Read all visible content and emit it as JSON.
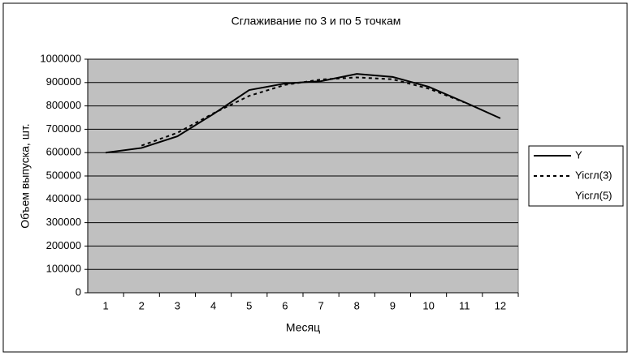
{
  "chart_data": {
    "type": "line",
    "title": "Сглаживание по 3 и по 5 точкам",
    "x_label": "Месяц",
    "y_label": "Объем выпуска, шт.",
    "categories": [
      "1",
      "2",
      "3",
      "4",
      "5",
      "6",
      "7",
      "8",
      "9",
      "10",
      "11",
      "12"
    ],
    "series": [
      {
        "name": "Y",
        "color": "#000000",
        "dash": "none",
        "values": [
          600000,
          620000,
          670000,
          765000,
          868000,
          896000,
          906000,
          937000,
          924000,
          882000,
          816000,
          747000
        ]
      },
      {
        "name": "Yicгл(3)",
        "color": "#000000",
        "dash": "4,4",
        "values": [
          null,
          630000,
          685000,
          768000,
          843000,
          890000,
          913000,
          922000,
          914000,
          874000,
          815000,
          null
        ]
      },
      {
        "name": "Yicгл(5)",
        "color": "none",
        "dash": "none",
        "values": [
          null,
          null,
          null,
          null,
          null,
          null,
          null,
          null,
          null,
          null,
          null,
          null
        ]
      }
    ],
    "ylim": [
      0,
      1000000
    ],
    "yticks": [
      0,
      100000,
      200000,
      300000,
      400000,
      500000,
      600000,
      700000,
      800000,
      900000,
      1000000
    ],
    "grid": true,
    "plot_background": "#c0c0c0",
    "legend": "right"
  }
}
